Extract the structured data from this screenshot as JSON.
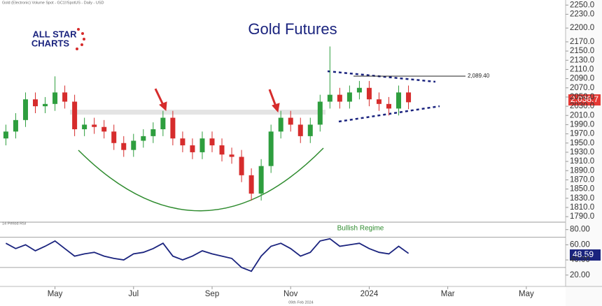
{
  "logo": [
    "ALL STAR",
    "CHARTS"
  ],
  "footer": "09th Feb 2024",
  "chart_data": [
    {
      "type": "candlestick",
      "title": "Gold Futures",
      "subtitle": "Gold (Electronic) Volume Spot - GC1!/SpotUS - Daily - USD",
      "x": [
        -0.25,
        0,
        0.25,
        0.5,
        0.75,
        1,
        1.25,
        1.5,
        1.75,
        2,
        2.25,
        2.5,
        2.75,
        3,
        3.25,
        3.5,
        3.75,
        4,
        4.25,
        4.5,
        4.75,
        5,
        5.25,
        5.5,
        5.75,
        6,
        6.25,
        6.5,
        6.75,
        7,
        7.25,
        7.5,
        7.75,
        8,
        8.25,
        8.5,
        8.75,
        9,
        9.25,
        9.5,
        9.75,
        10
      ],
      "open": [
        1960,
        1975,
        2000,
        2045,
        2030,
        2035,
        2060,
        2040,
        1980,
        1990,
        1985,
        1975,
        1950,
        1935,
        1955,
        1965,
        1980,
        2005,
        1960,
        1945,
        1930,
        1960,
        1945,
        1925,
        1920,
        1880,
        1840,
        1900,
        1975,
        2005,
        1990,
        1965,
        1990,
        2040,
        2055,
        2040,
        2060,
        2070,
        2045,
        2035,
        2025,
        2060
      ],
      "high": [
        1990,
        2015,
        2060,
        2060,
        2050,
        2095,
        2075,
        2055,
        2005,
        2005,
        2000,
        1990,
        1965,
        1970,
        1980,
        1995,
        2020,
        2020,
        1975,
        1960,
        1975,
        1975,
        1960,
        1940,
        1935,
        1895,
        1915,
        1990,
        2020,
        2020,
        2005,
        2005,
        2055,
        2160,
        2070,
        2075,
        2085,
        2085,
        2060,
        2050,
        2075,
        2075
      ],
      "low": [
        1945,
        1960,
        1985,
        2015,
        2015,
        2020,
        2025,
        1965,
        1965,
        1970,
        1960,
        1935,
        1920,
        1920,
        1940,
        1950,
        1965,
        1945,
        1930,
        1915,
        1915,
        1930,
        1910,
        1905,
        1865,
        1825,
        1825,
        1885,
        1960,
        1975,
        1950,
        1950,
        1975,
        2025,
        2025,
        2025,
        2045,
        2030,
        2020,
        2010,
        2010,
        2023.7
      ],
      "close": [
        1975,
        2000,
        2045,
        2030,
        2035,
        2060,
        2040,
        1980,
        1990,
        1985,
        1975,
        1950,
        1935,
        1955,
        1965,
        1980,
        2005,
        1960,
        1945,
        1930,
        1960,
        1945,
        1925,
        1920,
        1880,
        1840,
        1900,
        1975,
        2005,
        1990,
        1965,
        1990,
        2040,
        2055,
        2040,
        2060,
        2070,
        2045,
        2035,
        2025,
        2060,
        2038.7
      ],
      "up_color": "#2e9e3e",
      "down_color": "#d62c2c",
      "xlim": [
        -0.4,
        14.0
      ],
      "xticks": [
        {
          "value": 1,
          "label": "May"
        },
        {
          "value": 3,
          "label": "Jul"
        },
        {
          "value": 5,
          "label": "Sep"
        },
        {
          "value": 7,
          "label": "Nov"
        },
        {
          "value": 9,
          "label": "2024"
        },
        {
          "value": 11,
          "label": "Mar"
        },
        {
          "value": 13,
          "label": "May"
        }
      ],
      "ylim": [
        1778,
        2261
      ],
      "yticks": [
        {
          "value": 2250,
          "label": "2250.0"
        },
        {
          "value": 2230,
          "label": "2230.0"
        },
        {
          "value": 2200,
          "label": "2200.0"
        },
        {
          "value": 2170,
          "label": "2170.0"
        },
        {
          "value": 2150,
          "label": "2150.0"
        },
        {
          "value": 2130,
          "label": "2130.0"
        },
        {
          "value": 2110,
          "label": "2110.0"
        },
        {
          "value": 2090,
          "label": "2090.0"
        },
        {
          "value": 2070,
          "label": "2070.0"
        },
        {
          "value": 2050,
          "label": "2050.0"
        },
        {
          "value": 2030,
          "label": "2030.0"
        },
        {
          "value": 2010,
          "label": "2010.0"
        },
        {
          "value": 1990,
          "label": "1990.0"
        },
        {
          "value": 1970,
          "label": "1970.0"
        },
        {
          "value": 1950,
          "label": "1950.0"
        },
        {
          "value": 1930,
          "label": "1930.0"
        },
        {
          "value": 1910,
          "label": "1910.0"
        },
        {
          "value": 1890,
          "label": "1890.0"
        },
        {
          "value": 1870,
          "label": "1870.0"
        },
        {
          "value": 1850,
          "label": "1850.0"
        },
        {
          "value": 1830,
          "label": "1830.0"
        },
        {
          "value": 1810,
          "label": "1810.0"
        },
        {
          "value": 1790,
          "label": "1790.0"
        }
      ],
      "annotations": [
        "2,089.40",
        "2,038.7"
      ]
    },
    {
      "type": "line",
      "title": "14 Period RSI",
      "x": [
        -0.25,
        0,
        0.25,
        0.5,
        0.75,
        1,
        1.25,
        1.5,
        1.75,
        2,
        2.25,
        2.5,
        2.75,
        3,
        3.25,
        3.5,
        3.75,
        4,
        4.25,
        4.5,
        4.75,
        5,
        5.25,
        5.5,
        5.75,
        6,
        6.25,
        6.5,
        6.75,
        7,
        7.25,
        7.5,
        7.75,
        8,
        8.25,
        8.5,
        8.75,
        9,
        9.25,
        9.5,
        9.75,
        10
      ],
      "values": [
        62,
        55,
        60,
        52,
        58,
        65,
        55,
        45,
        48,
        50,
        45,
        42,
        40,
        48,
        50,
        55,
        62,
        45,
        40,
        45,
        52,
        48,
        45,
        42,
        30,
        25,
        45,
        58,
        62,
        55,
        45,
        50,
        65,
        68,
        58,
        60,
        62,
        55,
        50,
        48,
        58,
        48.59
      ],
      "color": "#1a237e",
      "xlim": [
        -0.4,
        14.0
      ],
      "ylim": [
        5,
        88
      ],
      "yticks": [
        {
          "value": 80,
          "label": "80.00"
        },
        {
          "value": 60,
          "label": "60.00"
        },
        {
          "value": 40,
          "label": "40.00"
        },
        {
          "value": 20,
          "label": "20.00"
        }
      ],
      "annotations": [
        "Bullish Regime",
        "48.59"
      ]
    }
  ]
}
